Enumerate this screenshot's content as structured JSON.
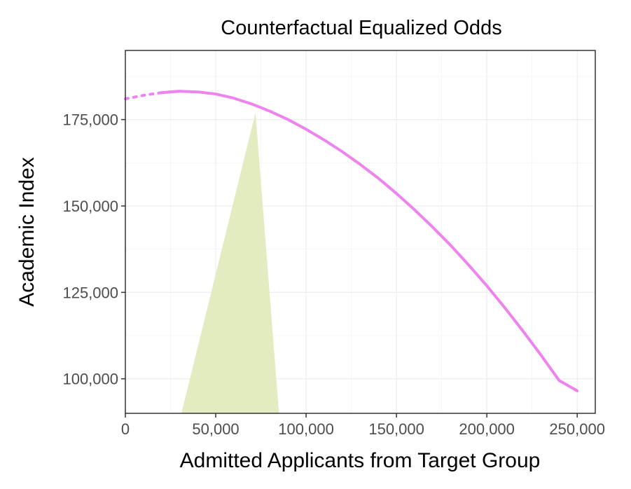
{
  "chart_data": {
    "type": "line",
    "title": "Counterfactual Equalized Odds",
    "xlabel": "Admitted Applicants from Target Group",
    "ylabel": "Academic Index",
    "xlim": [
      0,
      260000
    ],
    "ylim": [
      90000,
      195000
    ],
    "x_ticks": [
      0,
      50000,
      100000,
      150000,
      200000,
      250000
    ],
    "x_tick_labels": [
      "0",
      "50,000",
      "100,000",
      "150,000",
      "200,000",
      "250,000"
    ],
    "y_ticks": [
      100000,
      125000,
      150000,
      175000
    ],
    "y_tick_labels": [
      "100,000",
      "125,000",
      "150,000",
      "175,000"
    ],
    "grid": true,
    "series": [
      {
        "color": "#ee82ee",
        "style": "dotted-then-solid",
        "dotted_until_x": 27000,
        "x": [
          0,
          10000,
          20000,
          30000,
          40000,
          50000,
          60000,
          70000,
          80000,
          90000,
          100000,
          110000,
          120000,
          130000,
          140000,
          150000,
          160000,
          170000,
          180000,
          190000,
          200000,
          210000,
          220000,
          230000,
          240000,
          250000
        ],
        "y": [
          181000,
          182000,
          182800,
          183200,
          183000,
          182400,
          181200,
          179500,
          177400,
          175000,
          172200,
          169100,
          165700,
          162000,
          158000,
          153600,
          148900,
          143900,
          138600,
          132900,
          126900,
          120500,
          113800,
          106800,
          99500,
          96500
        ]
      }
    ],
    "shaded_region": {
      "color": "#e3ecc1",
      "points": [
        [
          31000,
          90000
        ],
        [
          72000,
          177000
        ],
        [
          85000,
          90000
        ]
      ]
    }
  }
}
